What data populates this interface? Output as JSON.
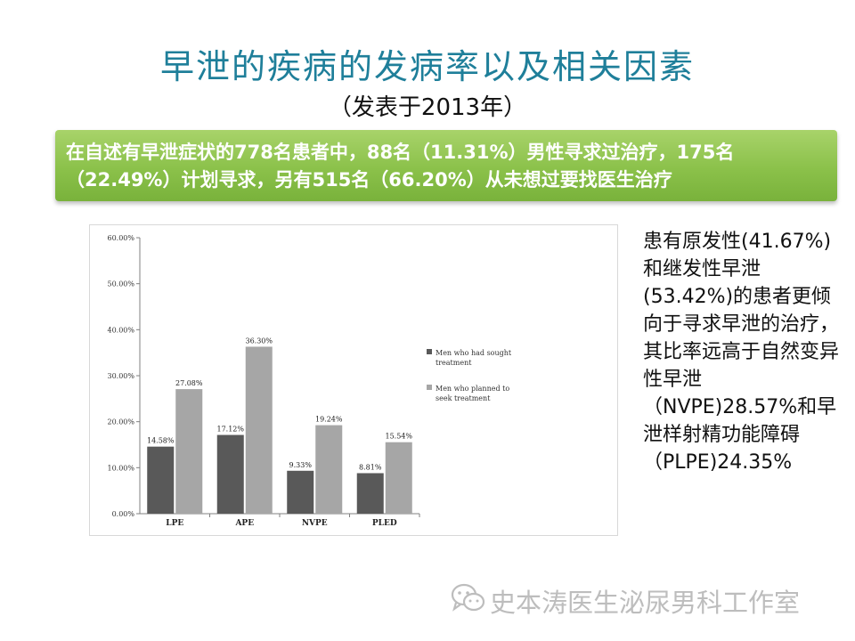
{
  "slide": {
    "title": "早泄的疾病的发病率以及相关因素",
    "subtitle": "（发表于2013年）",
    "banner_text": "在自述有早泄症状的778名患者中，88名（11.31%）男性寻求过治疗，175名（22.49%）计划寻求，另有515名（66.20%）从未想过要找医生治疗",
    "side_text": "患有原发性(41.67%)和继发性早泄(53.42%)的患者更倾向于寻求早泄的治疗，其比率远高于自然变异性早泄（NVPE)28.57%和早泄样射精功能障碍（PLPE)24.35%",
    "watermark": "史本涛医生泌尿男科工作室",
    "watermark_icon": "wechat-icon",
    "colors": {
      "title": "#1f7f9a",
      "banner": "#8bc14a",
      "series_dark": "#595959",
      "series_light": "#a6a6a6"
    }
  },
  "chart_data": {
    "type": "bar",
    "categories": [
      "LPE",
      "APE",
      "NVPE",
      "PLED"
    ],
    "series": [
      {
        "name": "Men who had sought treatment",
        "values": [
          14.58,
          17.12,
          9.33,
          8.81
        ],
        "labels": [
          "14.58%",
          "17.12%",
          "9.33%",
          "8.81%"
        ],
        "color": "#595959"
      },
      {
        "name": "Men who planned to seek treatment",
        "values": [
          27.08,
          36.3,
          19.24,
          15.54
        ],
        "labels": [
          "27.08%",
          "36.30%",
          "19.24%",
          "15.54%"
        ],
        "color": "#a6a6a6"
      }
    ],
    "ylim": [
      0,
      60
    ],
    "yticks": [
      "0.00%",
      "10.00%",
      "20.00%",
      "30.00%",
      "40.00%",
      "50.00%",
      "60.00%"
    ],
    "grid": false,
    "legend": "right"
  }
}
